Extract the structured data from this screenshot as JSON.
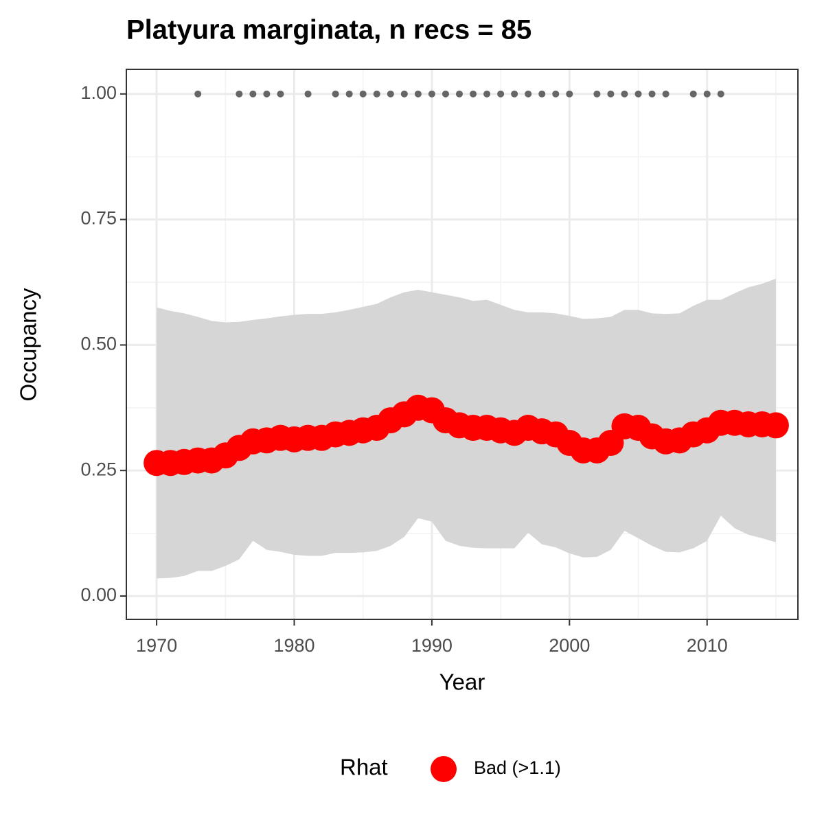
{
  "chart_data": {
    "type": "line",
    "title": "Platyura marginata, n recs = 85",
    "x_label": "Year",
    "y_label": "Occupancy",
    "legend_title": "Rhat",
    "x": [
      1970,
      1971,
      1972,
      1973,
      1974,
      1975,
      1976,
      1977,
      1978,
      1979,
      1980,
      1981,
      1982,
      1983,
      1984,
      1985,
      1986,
      1987,
      1988,
      1989,
      1990,
      1991,
      1992,
      1993,
      1994,
      1995,
      1996,
      1997,
      1998,
      1999,
      2000,
      2001,
      2002,
      2003,
      2004,
      2005,
      2006,
      2007,
      2008,
      2009,
      2010,
      2011,
      2012,
      2013,
      2014,
      2015
    ],
    "series": [
      {
        "name": "Bad (>1.1)",
        "color": "#ff0000",
        "values": [
          0.265,
          0.265,
          0.267,
          0.27,
          0.27,
          0.28,
          0.295,
          0.308,
          0.31,
          0.315,
          0.312,
          0.315,
          0.315,
          0.322,
          0.325,
          0.33,
          0.335,
          0.35,
          0.362,
          0.375,
          0.37,
          0.35,
          0.34,
          0.335,
          0.335,
          0.33,
          0.325,
          0.335,
          0.328,
          0.322,
          0.305,
          0.29,
          0.29,
          0.305,
          0.338,
          0.335,
          0.318,
          0.308,
          0.31,
          0.322,
          0.33,
          0.345,
          0.345,
          0.342,
          0.342,
          0.34
        ]
      }
    ],
    "band": {
      "color": "#d6d6d6",
      "upper": [
        0.575,
        0.568,
        0.563,
        0.556,
        0.548,
        0.545,
        0.546,
        0.55,
        0.553,
        0.557,
        0.56,
        0.562,
        0.562,
        0.565,
        0.57,
        0.576,
        0.582,
        0.595,
        0.605,
        0.61,
        0.605,
        0.6,
        0.595,
        0.588,
        0.59,
        0.58,
        0.57,
        0.565,
        0.565,
        0.563,
        0.558,
        0.552,
        0.553,
        0.556,
        0.57,
        0.57,
        0.563,
        0.562,
        0.563,
        0.578,
        0.59,
        0.59,
        0.603,
        0.615,
        0.622,
        0.632
      ],
      "lower": [
        0.035,
        0.036,
        0.04,
        0.05,
        0.05,
        0.06,
        0.073,
        0.11,
        0.092,
        0.088,
        0.082,
        0.08,
        0.08,
        0.086,
        0.086,
        0.087,
        0.09,
        0.1,
        0.118,
        0.155,
        0.148,
        0.11,
        0.1,
        0.096,
        0.095,
        0.095,
        0.095,
        0.126,
        0.103,
        0.097,
        0.085,
        0.077,
        0.078,
        0.092,
        0.13,
        0.115,
        0.1,
        0.088,
        0.087,
        0.095,
        0.11,
        0.16,
        0.135,
        0.122,
        0.115,
        0.107
      ]
    },
    "records": {
      "color": "#666666",
      "x": [
        1973,
        1976,
        1977,
        1978,
        1979,
        1981,
        1983,
        1984,
        1985,
        1986,
        1987,
        1988,
        1989,
        1990,
        1991,
        1992,
        1993,
        1994,
        1995,
        1996,
        1997,
        1998,
        1999,
        2000,
        2002,
        2003,
        2004,
        2005,
        2006,
        2007,
        2009,
        2010,
        2011
      ],
      "values": [
        1,
        1,
        1,
        1,
        1,
        1,
        1,
        1,
        1,
        1,
        1,
        1,
        1,
        1,
        1,
        1,
        1,
        1,
        1,
        1,
        1,
        1,
        1,
        1,
        1,
        1,
        1,
        1,
        1,
        1,
        1,
        1,
        1
      ]
    },
    "xlim": [
      1967.8,
      2016.6
    ],
    "ylim": [
      -0.0465,
      1.049
    ],
    "xticks": [
      1970,
      1980,
      1990,
      2000,
      2010
    ],
    "minor_xticks": [
      1975,
      1985,
      1995,
      2005,
      2015
    ],
    "yticks": [
      {
        "value": 0,
        "label": "0.00"
      },
      {
        "value": 0.25,
        "label": "0.25"
      },
      {
        "value": 0.5,
        "label": "0.50"
      },
      {
        "value": 0.75,
        "label": "0.75"
      },
      {
        "value": 1,
        "label": "1.00"
      }
    ],
    "minor_yticks": [
      0.125,
      0.375,
      0.625,
      0.875
    ],
    "grid": true,
    "legend": "bottom"
  }
}
